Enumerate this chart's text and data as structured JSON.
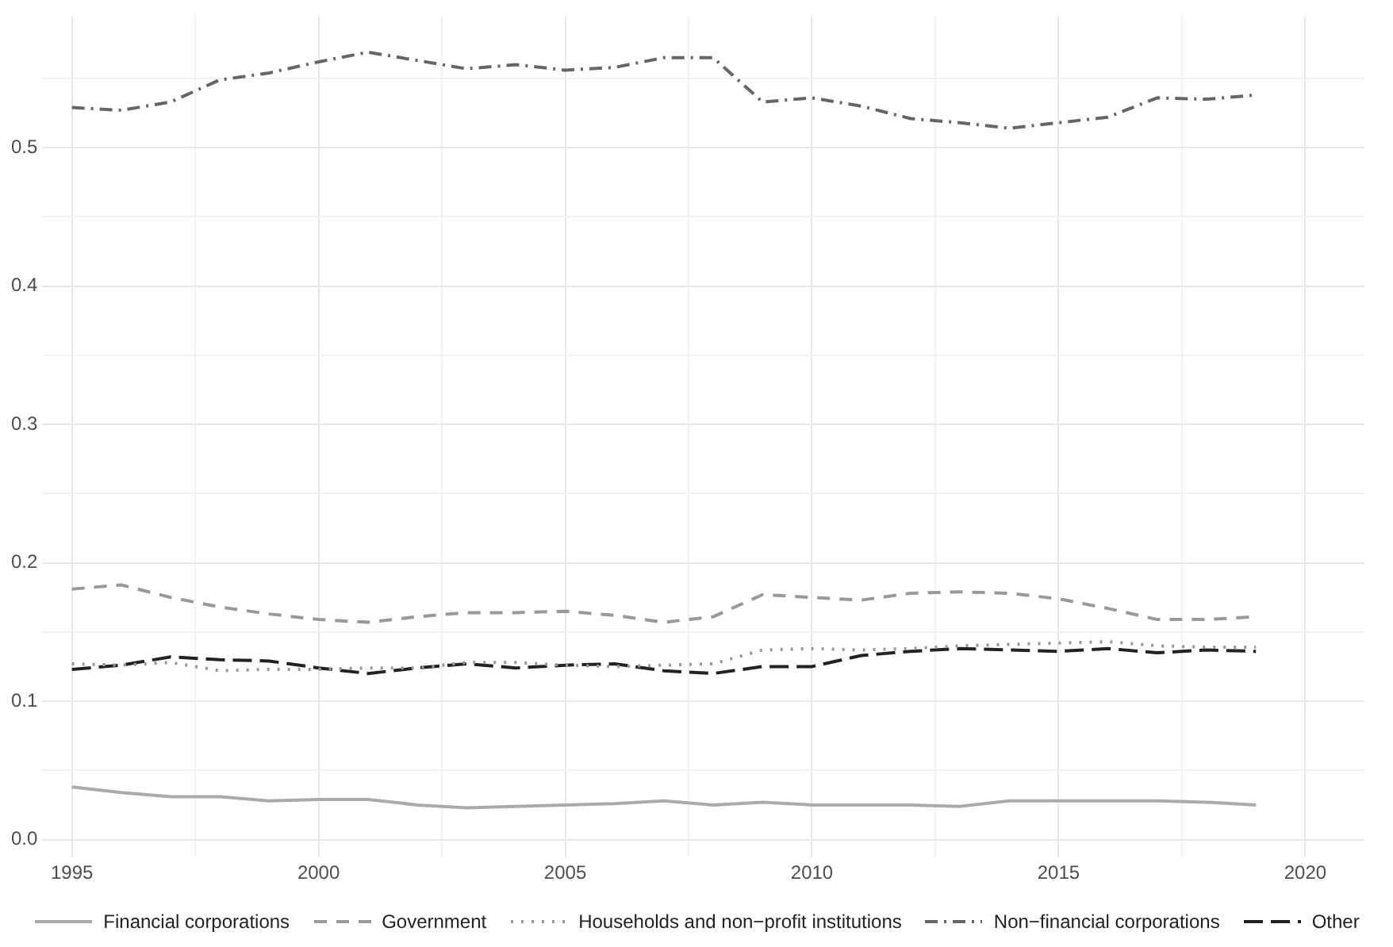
{
  "chart_data": {
    "type": "line",
    "x": [
      1995,
      1996,
      1997,
      1998,
      1999,
      2000,
      2001,
      2002,
      2003,
      2004,
      2005,
      2006,
      2007,
      2008,
      2009,
      2010,
      2011,
      2012,
      2013,
      2014,
      2015,
      2016,
      2017,
      2018,
      2019
    ],
    "series": [
      {
        "name": "Financial corporations",
        "color": "#aaaaaa",
        "line_style": "solid",
        "values": [
          0.038,
          0.034,
          0.031,
          0.031,
          0.028,
          0.029,
          0.029,
          0.025,
          0.023,
          0.024,
          0.025,
          0.026,
          0.028,
          0.025,
          0.027,
          0.025,
          0.025,
          0.025,
          0.024,
          0.028,
          0.028,
          0.028,
          0.028,
          0.027,
          0.025
        ]
      },
      {
        "name": "Government",
        "color": "#999999",
        "line_style": "dashed",
        "values": [
          0.181,
          0.184,
          0.175,
          0.168,
          0.163,
          0.159,
          0.157,
          0.161,
          0.164,
          0.164,
          0.165,
          0.162,
          0.157,
          0.161,
          0.177,
          0.175,
          0.173,
          0.178,
          0.179,
          0.178,
          0.174,
          0.167,
          0.159,
          0.159,
          0.161
        ]
      },
      {
        "name": "Households and non−profit institutions",
        "color": "#999999",
        "line_style": "dotted",
        "values": [
          0.127,
          0.126,
          0.128,
          0.122,
          0.123,
          0.123,
          0.124,
          0.124,
          0.128,
          0.128,
          0.126,
          0.125,
          0.126,
          0.127,
          0.137,
          0.138,
          0.137,
          0.138,
          0.14,
          0.141,
          0.142,
          0.143,
          0.14,
          0.139,
          0.139
        ]
      },
      {
        "name": "Non−financial corporations",
        "color": "#666666",
        "line_style": "dashdot",
        "values": [
          0.529,
          0.527,
          0.533,
          0.549,
          0.554,
          0.562,
          0.569,
          0.563,
          0.557,
          0.56,
          0.556,
          0.558,
          0.565,
          0.565,
          0.533,
          0.536,
          0.53,
          0.521,
          0.518,
          0.514,
          0.518,
          0.522,
          0.536,
          0.535,
          0.538
        ]
      },
      {
        "name": "Other",
        "color": "#222222",
        "line_style": "longdash",
        "values": [
          0.123,
          0.126,
          0.132,
          0.13,
          0.129,
          0.124,
          0.12,
          0.124,
          0.127,
          0.124,
          0.126,
          0.127,
          0.122,
          0.12,
          0.125,
          0.125,
          0.133,
          0.136,
          0.138,
          0.137,
          0.136,
          0.138,
          0.135,
          0.137,
          0.136
        ]
      }
    ],
    "xlim": [
      1994.4,
      2021.2
    ],
    "xticks": [
      1995,
      {
        "value": 1997.5,
        "label": null
      },
      2000,
      {
        "value": 2002.5,
        "label": null
      },
      2005,
      {
        "value": 2007.5,
        "label": null
      },
      2010,
      {
        "value": 2012.5,
        "label": null
      },
      2015,
      {
        "value": 2017.5,
        "label": null
      },
      2020
    ],
    "ylim": [
      -0.013,
      0.595
    ],
    "yticks": [
      {
        "value": 0,
        "label": "0.0"
      },
      {
        "value": 0.05,
        "label": null
      },
      0.1,
      {
        "value": 0.15,
        "label": null
      },
      0.2,
      {
        "value": 0.25,
        "label": null
      },
      0.3,
      {
        "value": 0.35,
        "label": null
      },
      0.4,
      {
        "value": 0.45,
        "label": null
      },
      0.5,
      {
        "value": 0.55,
        "label": null
      }
    ],
    "grid": true,
    "legend": "bottom",
    "marker": "none"
  }
}
